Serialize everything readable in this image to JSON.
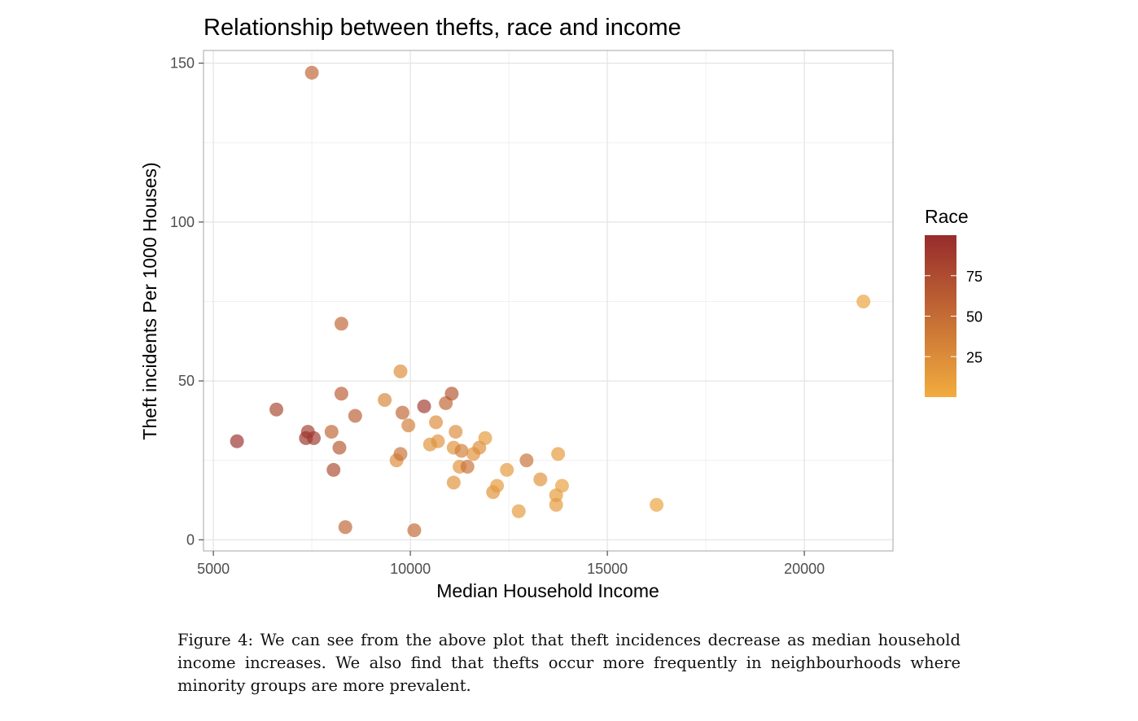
{
  "chart_data": {
    "type": "scatter",
    "title": "Relationship between thefts, race and income",
    "xlabel": "Median Household Income",
    "ylabel": "Theft incidents Per 1000 Houses)",
    "xlim": [
      4750,
      22250
    ],
    "ylim": [
      -3.5,
      154
    ],
    "x_ticks": [
      5000,
      10000,
      15000,
      20000
    ],
    "y_ticks": [
      0,
      50,
      100,
      150
    ],
    "grid": true,
    "legend": {
      "title": "Race",
      "type": "colorbar",
      "position": "right",
      "range": [
        0,
        100
      ],
      "ticks": [
        25,
        50,
        75
      ],
      "low_color": "#f2ac3e",
      "high_color": "#962c2c"
    },
    "points": [
      {
        "x": 5600,
        "y": 31,
        "race": 95
      },
      {
        "x": 6600,
        "y": 41,
        "race": 78
      },
      {
        "x": 7400,
        "y": 34,
        "race": 85
      },
      {
        "x": 7350,
        "y": 32,
        "race": 95
      },
      {
        "x": 7550,
        "y": 32,
        "race": 90
      },
      {
        "x": 7500,
        "y": 147,
        "race": 55
      },
      {
        "x": 8000,
        "y": 34,
        "race": 55
      },
      {
        "x": 8050,
        "y": 22,
        "race": 75
      },
      {
        "x": 8200,
        "y": 29,
        "race": 65
      },
      {
        "x": 8250,
        "y": 46,
        "race": 62
      },
      {
        "x": 8250,
        "y": 68,
        "race": 55
      },
      {
        "x": 8350,
        "y": 4,
        "race": 55
      },
      {
        "x": 8600,
        "y": 39,
        "race": 62
      },
      {
        "x": 9350,
        "y": 44,
        "race": 30
      },
      {
        "x": 9650,
        "y": 25,
        "race": 25
      },
      {
        "x": 9750,
        "y": 53,
        "race": 25
      },
      {
        "x": 9750,
        "y": 27,
        "race": 45
      },
      {
        "x": 9800,
        "y": 40,
        "race": 55
      },
      {
        "x": 9950,
        "y": 36,
        "race": 35
      },
      {
        "x": 10100,
        "y": 3,
        "race": 52
      },
      {
        "x": 10350,
        "y": 42,
        "race": 88
      },
      {
        "x": 10500,
        "y": 30,
        "race": 20
      },
      {
        "x": 10650,
        "y": 37,
        "race": 25
      },
      {
        "x": 10700,
        "y": 31,
        "race": 20
      },
      {
        "x": 10900,
        "y": 43,
        "race": 55
      },
      {
        "x": 11050,
        "y": 46,
        "race": 68
      },
      {
        "x": 11100,
        "y": 29,
        "race": 20
      },
      {
        "x": 11100,
        "y": 18,
        "race": 20
      },
      {
        "x": 11150,
        "y": 34,
        "race": 25
      },
      {
        "x": 11250,
        "y": 23,
        "race": 20
      },
      {
        "x": 11300,
        "y": 28,
        "race": 35
      },
      {
        "x": 11450,
        "y": 23,
        "race": 45
      },
      {
        "x": 11600,
        "y": 27,
        "race": 20
      },
      {
        "x": 11750,
        "y": 29,
        "race": 25
      },
      {
        "x": 11900,
        "y": 32,
        "race": 15
      },
      {
        "x": 12100,
        "y": 15,
        "race": 20
      },
      {
        "x": 12200,
        "y": 17,
        "race": 15
      },
      {
        "x": 12450,
        "y": 22,
        "race": 15
      },
      {
        "x": 12750,
        "y": 9,
        "race": 15
      },
      {
        "x": 12950,
        "y": 25,
        "race": 45
      },
      {
        "x": 13300,
        "y": 19,
        "race": 20
      },
      {
        "x": 13700,
        "y": 11,
        "race": 15
      },
      {
        "x": 13750,
        "y": 27,
        "race": 15
      },
      {
        "x": 13700,
        "y": 14,
        "race": 15
      },
      {
        "x": 13850,
        "y": 17,
        "race": 10
      },
      {
        "x": 16250,
        "y": 11,
        "race": 8
      },
      {
        "x": 21500,
        "y": 75,
        "race": 8
      }
    ]
  },
  "caption": "Figure 4: We can see from the above plot that theft incidences decrease as median household income increases. We also find that thefts occur more frequently in neighbourhoods where minority groups are more prevalent."
}
